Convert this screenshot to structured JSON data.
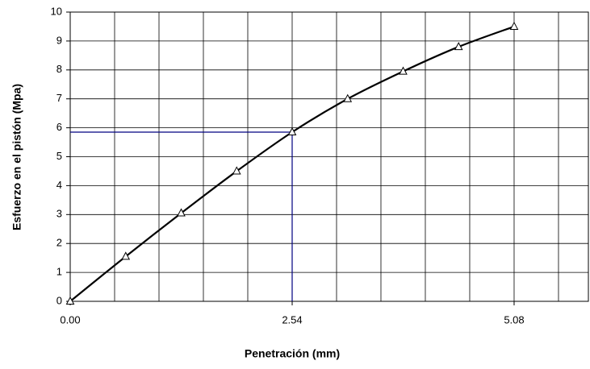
{
  "chart_data": {
    "type": "line",
    "x_label": "Penetración (mm)",
    "y_label": "Esfuerzo en el pistón (Mpa)",
    "x": [
      0,
      0.635,
      1.27,
      1.905,
      2.54,
      3.175,
      3.81,
      4.445,
      5.08
    ],
    "series": [
      {
        "color": "#000000",
        "values": [
          0,
          1.55,
          3.05,
          4.5,
          5.85,
          7.0,
          7.95,
          8.8,
          9.5
        ]
      }
    ],
    "xlim": [
      0,
      5.93
    ],
    "ylim": [
      0,
      10
    ],
    "xticks": [
      {
        "value": 0,
        "label": "0.00"
      },
      {
        "value": 2.54,
        "label": "2.54"
      },
      {
        "value": 5.08,
        "label": "5.08"
      }
    ],
    "minor_xticks": [
      0.508,
      1.016,
      1.524,
      2.032,
      3.048,
      3.556,
      4.064,
      4.572,
      5.588
    ],
    "yticks": [
      0,
      1,
      2,
      3,
      4,
      5,
      6,
      7,
      8,
      9,
      10
    ],
    "grid": true,
    "reference": {
      "x": 2.54,
      "y": 5.85,
      "color": "#000080"
    }
  }
}
